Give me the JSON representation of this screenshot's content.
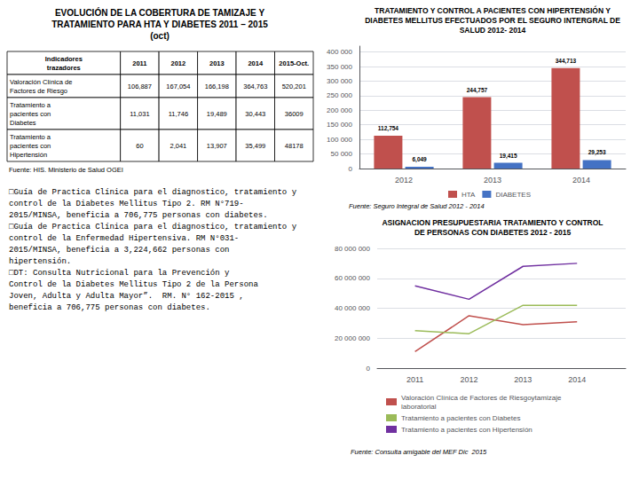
{
  "chart_data": [
    {
      "type": "table",
      "title": "EVOLUCIÓN DE LA COBERTURA DE TAMIZAJE Y\nTRATAMIENTO PARA HTA Y DIABETES 2011 – 2015\n(oct)",
      "columns": [
        "Indicadores\ntrazadores",
        "2011",
        "2012",
        "2013",
        "2014",
        "2015-Oct."
      ],
      "rows": [
        [
          "Valoración Clínica de\nFactores de Riesgo",
          "106,887",
          "167,054",
          "166,198",
          "364,763",
          "520,201"
        ],
        [
          "Tratamiento a\npacientes con\nDiabetes",
          "11,031",
          "11,746",
          "19,489",
          "30,443",
          "36009"
        ],
        [
          "Tratamiento a\npacientes con\nHipertensión",
          "60",
          "2,041",
          "13,907",
          "35,499",
          "48178"
        ]
      ],
      "annotations": [
        "Fuente: HIS. Ministerio de Salud OGEI"
      ]
    },
    {
      "type": "text",
      "annotations": [
        "□Guía de Practica Clínica para el diagnostico, tratamiento y\ncontrol de la Diabetes Mellitus Tipo 2. RM N°719-\n2015/MINSA, beneficia a 706,775 personas con diabetes.",
        "□Guía de Practica Clínica para el diagnostico, tratamiento y\ncontrol de la Enfermedad Hipertensiva. RM N°031-\n2015/MINSA, beneficia a 3,224,662 personas con\nhipertensión.",
        "□DT: Consulta Nutricional para la Prevención y\nControl de la Diabetes Mellitus Tipo 2 de la Persona\nJoven, Adulta y Adulta Mayor”.  RM. N° 162-2015 ,\nbeneficia a 706,775 personas con diabetes."
      ]
    },
    {
      "type": "bar",
      "title": "TRATAMIENTO Y CONTROL A PACIENTES CON HIPERTENSIÓN Y\nDIABETES MELLITUS EFECTUADOS POR EL SEGURO INTERGRAL DE\nSALUD 2012- 2014",
      "categories": [
        "2012",
        "2013",
        "2014"
      ],
      "series": [
        {
          "name": "HTA",
          "color": "#c0504d",
          "values": [
            112754,
            244757,
            344713
          ],
          "value_labels": [
            "112,754",
            "244,757",
            "344,713"
          ]
        },
        {
          "name": "DIABETES",
          "color": "#4472c4",
          "values": [
            6049,
            19415,
            29253
          ],
          "value_labels": [
            "6,049",
            "19,415",
            "29,253"
          ]
        }
      ],
      "ylim": [
        0,
        420000
      ],
      "yticks": [
        0,
        {
          "value": 50000,
          "label": "50 000"
        },
        {
          "value": 100000,
          "label": "100 000"
        },
        {
          "value": 150000,
          "label": "150 000"
        },
        {
          "value": 200000,
          "label": "200 000"
        },
        {
          "value": 250000,
          "label": "250 000"
        },
        {
          "value": 300000,
          "label": "300 000"
        },
        {
          "value": 350000,
          "label": "350 000"
        },
        {
          "value": 400000,
          "label": "400 000"
        }
      ],
      "grid": true,
      "legend": "bottom",
      "data_labels": true,
      "annotations": [
        "Fuente: Seguro Integral de Salud 2012 - 2014"
      ]
    },
    {
      "type": "line",
      "title": "ASIGNACION PRESUPUESTARIA TRATAMIENTO Y CONTROL\nDE PERSONAS CON DIABETES 2012 - 2015",
      "x": [
        2011,
        2012,
        2013,
        2014
      ],
      "series": [
        {
          "name": "Valoración Clínica de Factores de Riesgoytamizaje\nlaboratorial",
          "color": "#c0504d",
          "values": [
            11000000,
            35000000,
            29000000,
            31000000
          ]
        },
        {
          "name": "Tratamiento a pacientes con Diabetes",
          "color": "#9bbb59",
          "values": [
            25000000,
            23000000,
            42000000,
            42000000
          ]
        },
        {
          "name": "Tratamiento a pacientes con Hipertensión",
          "color": "#7030a0",
          "values": [
            55000000,
            46000000,
            68000000,
            70000000
          ]
        }
      ],
      "xlim": [
        2010.3,
        2014.9
      ],
      "xticks": [
        2011,
        2012,
        2013,
        2014
      ],
      "ylim": [
        0,
        80000000
      ],
      "yticks": [
        0,
        {
          "value": 20000000,
          "label": "20 000 000"
        },
        {
          "value": 40000000,
          "label": "40 000 000"
        },
        {
          "value": 60000000,
          "label": "60 000 000"
        },
        {
          "value": 80000000,
          "label": "80 000 000"
        }
      ],
      "grid": true,
      "legend": "bottom",
      "annotations": [
        "Fuente: Consulta amigable del MEF Dic  2015"
      ]
    }
  ]
}
